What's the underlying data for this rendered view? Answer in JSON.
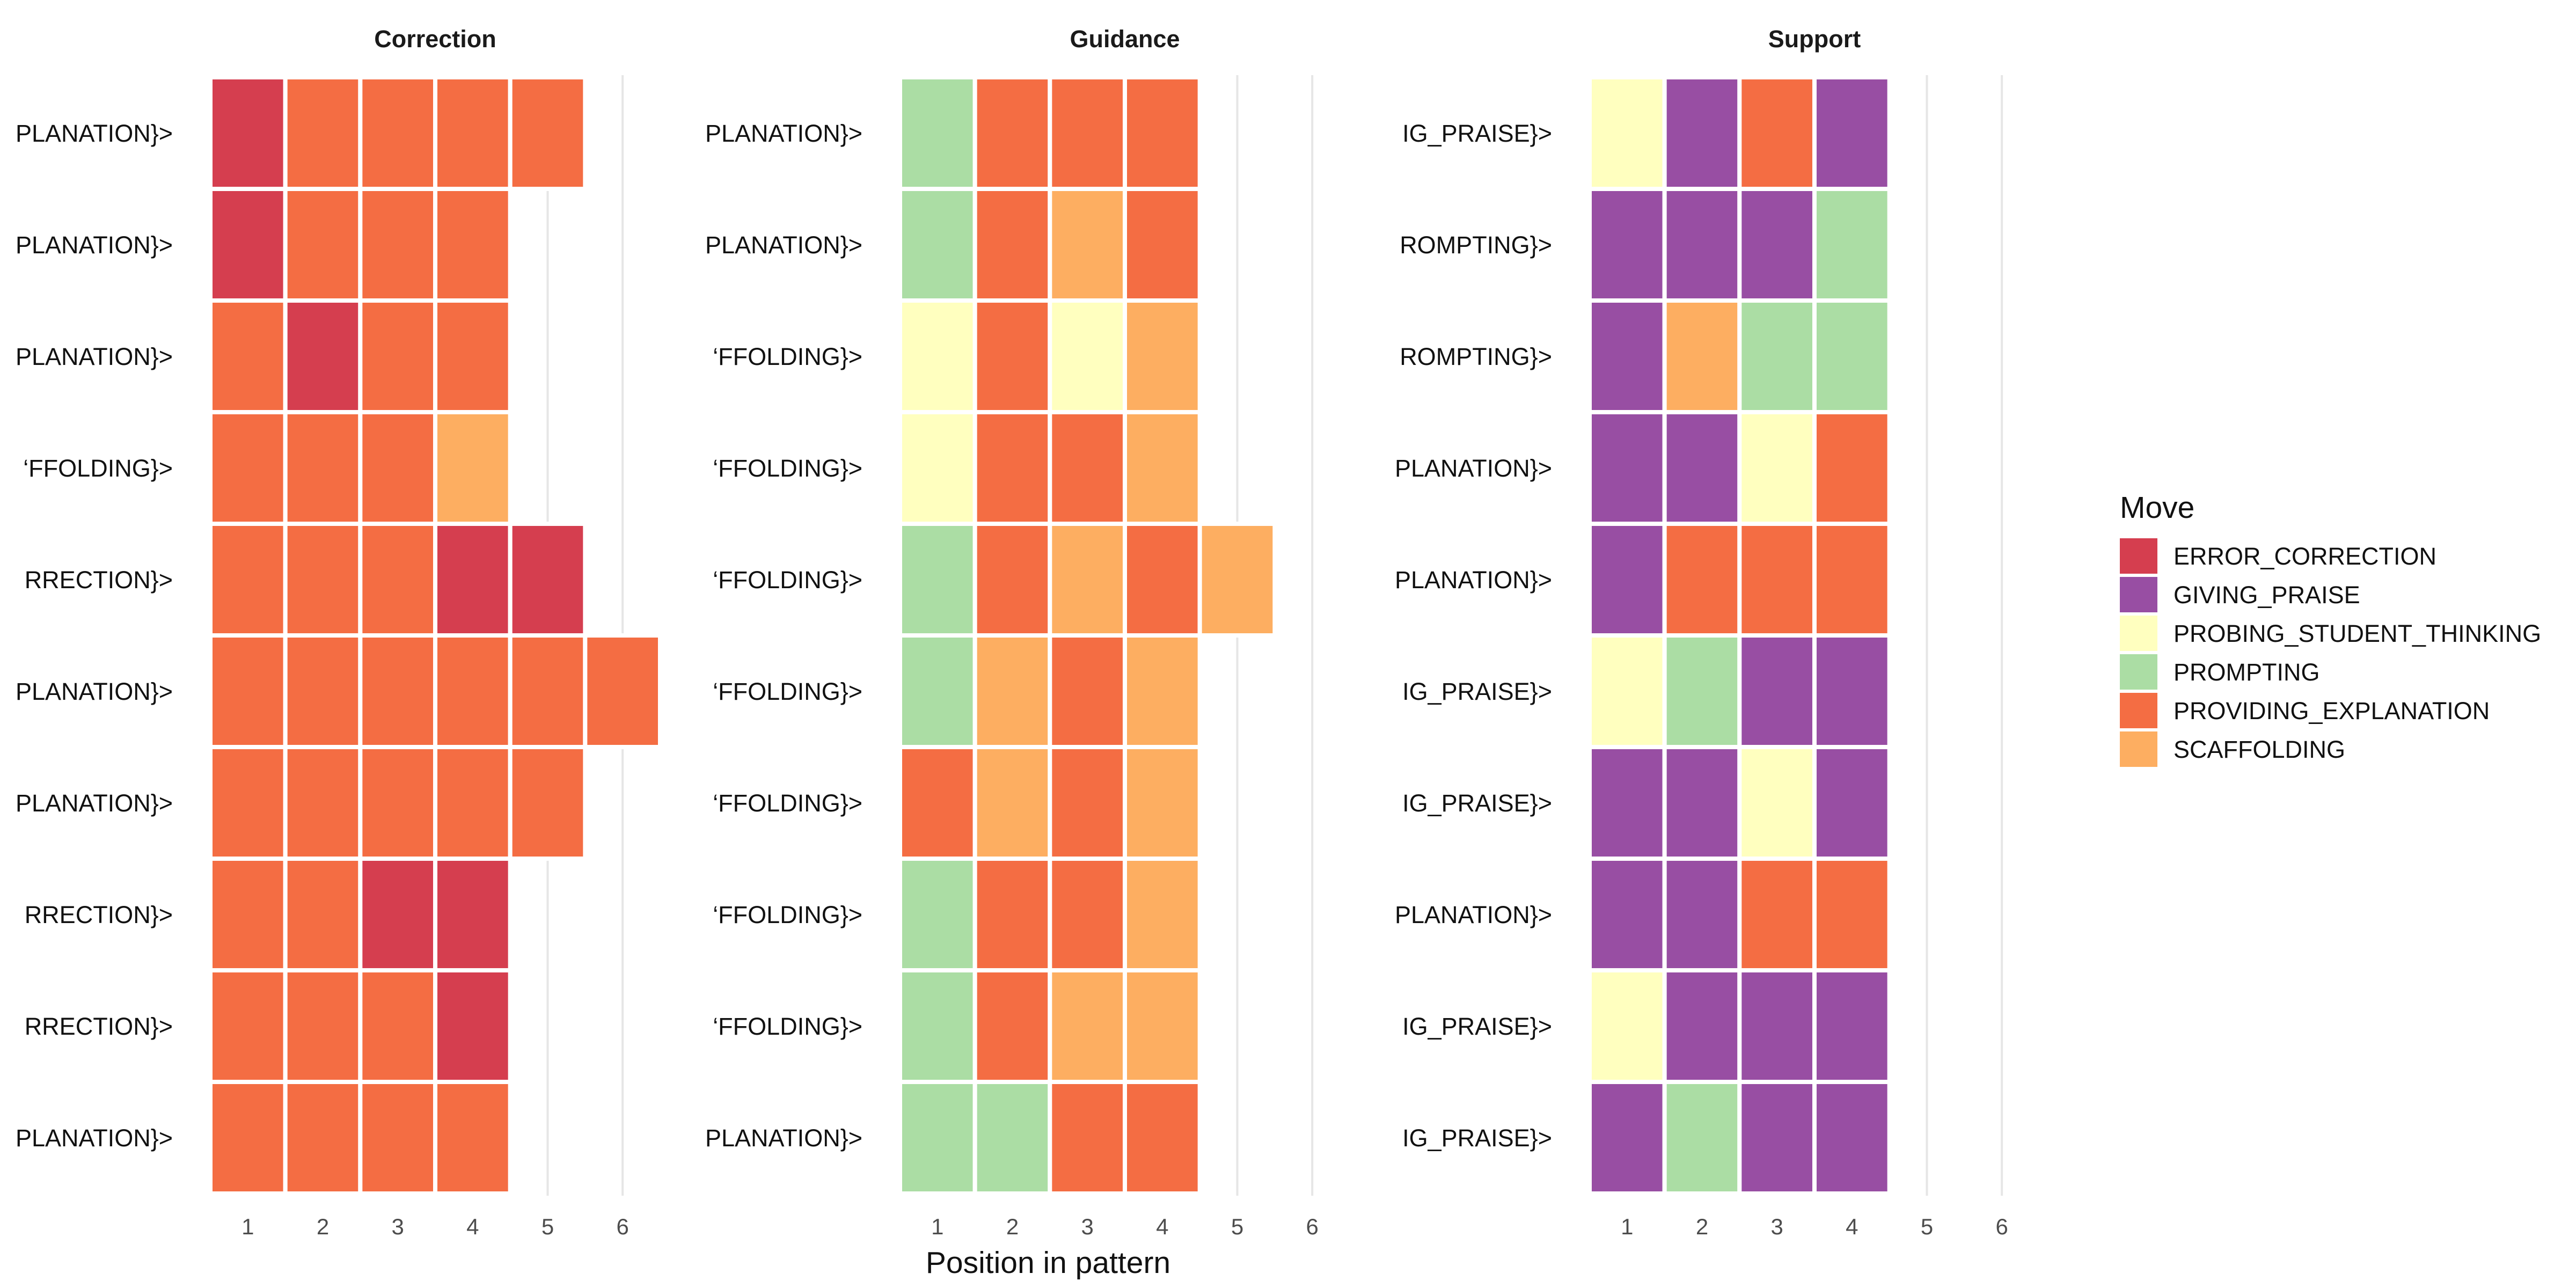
{
  "chart_data": {
    "type": "heatmap",
    "xlabel": "Position in pattern",
    "x_ticks": [
      1,
      2,
      3,
      4,
      5,
      6
    ],
    "xlim": [
      0.5,
      6.5
    ],
    "legend": {
      "title": "Move",
      "position": "right",
      "items": [
        {
          "name": "ERROR_CORRECTION",
          "color": "#d53e4f"
        },
        {
          "name": "GIVING_PRAISE",
          "color": "#984ea3"
        },
        {
          "name": "PROBING_STUDENT_THINKING",
          "color": "#ffffbf"
        },
        {
          "name": "PROMPTING",
          "color": "#abdda4"
        },
        {
          "name": "PROVIDING_EXPLANATION",
          "color": "#f46d43"
        },
        {
          "name": "SCAFFOLDING",
          "color": "#fdae61"
        }
      ]
    },
    "panels": [
      {
        "title": "Correction",
        "rows": [
          {
            "label": "PLANATION}>",
            "moves": [
              "ERROR_CORRECTION",
              "PROVIDING_EXPLANATION",
              "PROVIDING_EXPLANATION",
              "PROVIDING_EXPLANATION",
              "PROVIDING_EXPLANATION"
            ]
          },
          {
            "label": "PLANATION}>",
            "moves": [
              "ERROR_CORRECTION",
              "PROVIDING_EXPLANATION",
              "PROVIDING_EXPLANATION",
              "PROVIDING_EXPLANATION"
            ]
          },
          {
            "label": "PLANATION}>",
            "moves": [
              "PROVIDING_EXPLANATION",
              "ERROR_CORRECTION",
              "PROVIDING_EXPLANATION",
              "PROVIDING_EXPLANATION"
            ]
          },
          {
            "label": "‘FFOLDING}>",
            "moves": [
              "PROVIDING_EXPLANATION",
              "PROVIDING_EXPLANATION",
              "PROVIDING_EXPLANATION",
              "SCAFFOLDING"
            ]
          },
          {
            "label": "RRECTION}>",
            "moves": [
              "PROVIDING_EXPLANATION",
              "PROVIDING_EXPLANATION",
              "PROVIDING_EXPLANATION",
              "ERROR_CORRECTION",
              "ERROR_CORRECTION"
            ]
          },
          {
            "label": "PLANATION}>",
            "moves": [
              "PROVIDING_EXPLANATION",
              "PROVIDING_EXPLANATION",
              "PROVIDING_EXPLANATION",
              "PROVIDING_EXPLANATION",
              "PROVIDING_EXPLANATION",
              "PROVIDING_EXPLANATION"
            ]
          },
          {
            "label": "PLANATION}>",
            "moves": [
              "PROVIDING_EXPLANATION",
              "PROVIDING_EXPLANATION",
              "PROVIDING_EXPLANATION",
              "PROVIDING_EXPLANATION",
              "PROVIDING_EXPLANATION"
            ]
          },
          {
            "label": "RRECTION}>",
            "moves": [
              "PROVIDING_EXPLANATION",
              "PROVIDING_EXPLANATION",
              "ERROR_CORRECTION",
              "ERROR_CORRECTION"
            ]
          },
          {
            "label": "RRECTION}>",
            "moves": [
              "PROVIDING_EXPLANATION",
              "PROVIDING_EXPLANATION",
              "PROVIDING_EXPLANATION",
              "ERROR_CORRECTION"
            ]
          },
          {
            "label": "PLANATION}>",
            "moves": [
              "PROVIDING_EXPLANATION",
              "PROVIDING_EXPLANATION",
              "PROVIDING_EXPLANATION",
              "PROVIDING_EXPLANATION"
            ]
          }
        ]
      },
      {
        "title": "Guidance",
        "rows": [
          {
            "label": "PLANATION}>",
            "moves": [
              "PROMPTING",
              "PROVIDING_EXPLANATION",
              "PROVIDING_EXPLANATION",
              "PROVIDING_EXPLANATION"
            ]
          },
          {
            "label": "PLANATION}>",
            "moves": [
              "PROMPTING",
              "PROVIDING_EXPLANATION",
              "SCAFFOLDING",
              "PROVIDING_EXPLANATION"
            ]
          },
          {
            "label": "‘FFOLDING}>",
            "moves": [
              "PROBING_STUDENT_THINKING",
              "PROVIDING_EXPLANATION",
              "PROBING_STUDENT_THINKING",
              "SCAFFOLDING"
            ]
          },
          {
            "label": "‘FFOLDING}>",
            "moves": [
              "PROBING_STUDENT_THINKING",
              "PROVIDING_EXPLANATION",
              "PROVIDING_EXPLANATION",
              "SCAFFOLDING"
            ]
          },
          {
            "label": "‘FFOLDING}>",
            "moves": [
              "PROMPTING",
              "PROVIDING_EXPLANATION",
              "SCAFFOLDING",
              "PROVIDING_EXPLANATION",
              "SCAFFOLDING"
            ]
          },
          {
            "label": "‘FFOLDING}>",
            "moves": [
              "PROMPTING",
              "SCAFFOLDING",
              "PROVIDING_EXPLANATION",
              "SCAFFOLDING"
            ]
          },
          {
            "label": "‘FFOLDING}>",
            "moves": [
              "PROVIDING_EXPLANATION",
              "SCAFFOLDING",
              "PROVIDING_EXPLANATION",
              "SCAFFOLDING"
            ]
          },
          {
            "label": "‘FFOLDING}>",
            "moves": [
              "PROMPTING",
              "PROVIDING_EXPLANATION",
              "PROVIDING_EXPLANATION",
              "SCAFFOLDING"
            ]
          },
          {
            "label": "‘FFOLDING}>",
            "moves": [
              "PROMPTING",
              "PROVIDING_EXPLANATION",
              "SCAFFOLDING",
              "SCAFFOLDING"
            ]
          },
          {
            "label": "PLANATION}>",
            "moves": [
              "PROMPTING",
              "PROMPTING",
              "PROVIDING_EXPLANATION",
              "PROVIDING_EXPLANATION"
            ]
          }
        ]
      },
      {
        "title": "Support",
        "rows": [
          {
            "label": "IG_PRAISE}>",
            "moves": [
              "PROBING_STUDENT_THINKING",
              "GIVING_PRAISE",
              "PROVIDING_EXPLANATION",
              "GIVING_PRAISE"
            ]
          },
          {
            "label": "ROMPTING}>",
            "moves": [
              "GIVING_PRAISE",
              "GIVING_PRAISE",
              "GIVING_PRAISE",
              "PROMPTING"
            ]
          },
          {
            "label": "ROMPTING}>",
            "moves": [
              "GIVING_PRAISE",
              "SCAFFOLDING",
              "PROMPTING",
              "PROMPTING"
            ]
          },
          {
            "label": "PLANATION}>",
            "moves": [
              "GIVING_PRAISE",
              "GIVING_PRAISE",
              "PROBING_STUDENT_THINKING",
              "PROVIDING_EXPLANATION"
            ]
          },
          {
            "label": "PLANATION}>",
            "moves": [
              "GIVING_PRAISE",
              "PROVIDING_EXPLANATION",
              "PROVIDING_EXPLANATION",
              "PROVIDING_EXPLANATION"
            ]
          },
          {
            "label": "IG_PRAISE}>",
            "moves": [
              "PROBING_STUDENT_THINKING",
              "PROMPTING",
              "GIVING_PRAISE",
              "GIVING_PRAISE"
            ]
          },
          {
            "label": "IG_PRAISE}>",
            "moves": [
              "GIVING_PRAISE",
              "GIVING_PRAISE",
              "PROBING_STUDENT_THINKING",
              "GIVING_PRAISE"
            ]
          },
          {
            "label": "PLANATION}>",
            "moves": [
              "GIVING_PRAISE",
              "GIVING_PRAISE",
              "PROVIDING_EXPLANATION",
              "PROVIDING_EXPLANATION"
            ]
          },
          {
            "label": "IG_PRAISE}>",
            "moves": [
              "PROBING_STUDENT_THINKING",
              "GIVING_PRAISE",
              "GIVING_PRAISE",
              "GIVING_PRAISE"
            ]
          },
          {
            "label": "IG_PRAISE}>",
            "moves": [
              "GIVING_PRAISE",
              "PROMPTING",
              "GIVING_PRAISE",
              "GIVING_PRAISE"
            ]
          }
        ]
      }
    ]
  }
}
